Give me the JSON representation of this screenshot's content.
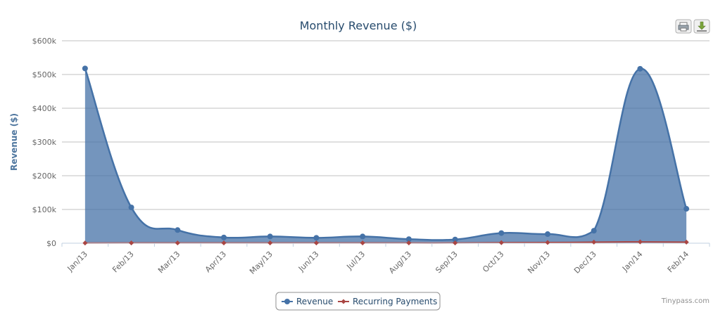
{
  "chart_data": {
    "type": "area",
    "title": "Monthly Revenue ($)",
    "xlabel": "",
    "ylabel": "Revenue ($)",
    "categories": [
      "Jan/13",
      "Feb/13",
      "Mar/13",
      "Apr/13",
      "May/13",
      "Jun/13",
      "Jul/13",
      "Aug/13",
      "Sep/13",
      "Oct/13",
      "Nov/13",
      "Dec/13",
      "Jan/14",
      "Feb/14"
    ],
    "ylim": [
      0,
      600000
    ],
    "yticks": [
      0,
      100000,
      200000,
      300000,
      400000,
      500000,
      600000
    ],
    "ytick_labels": [
      "$0",
      "$100k",
      "$200k",
      "$300k",
      "$400k",
      "$500k",
      "$600k"
    ],
    "series": [
      {
        "name": "Revenue",
        "color": "#4572a7",
        "values": [
          518000,
          106000,
          39000,
          17000,
          20000,
          16000,
          20000,
          12000,
          11000,
          30000,
          27000,
          37000,
          517000,
          102000
        ]
      },
      {
        "name": "Recurring Payments",
        "color": "#aa4643",
        "values": [
          500,
          800,
          700,
          700,
          800,
          700,
          700,
          700,
          700,
          1500,
          2000,
          3000,
          4000,
          3000
        ]
      }
    ],
    "grid": true,
    "legend_position": "bottom-center"
  },
  "toolbar": {
    "print_icon": "printer-icon",
    "export_icon": "download-icon"
  },
  "credits": "Tinypass.com"
}
